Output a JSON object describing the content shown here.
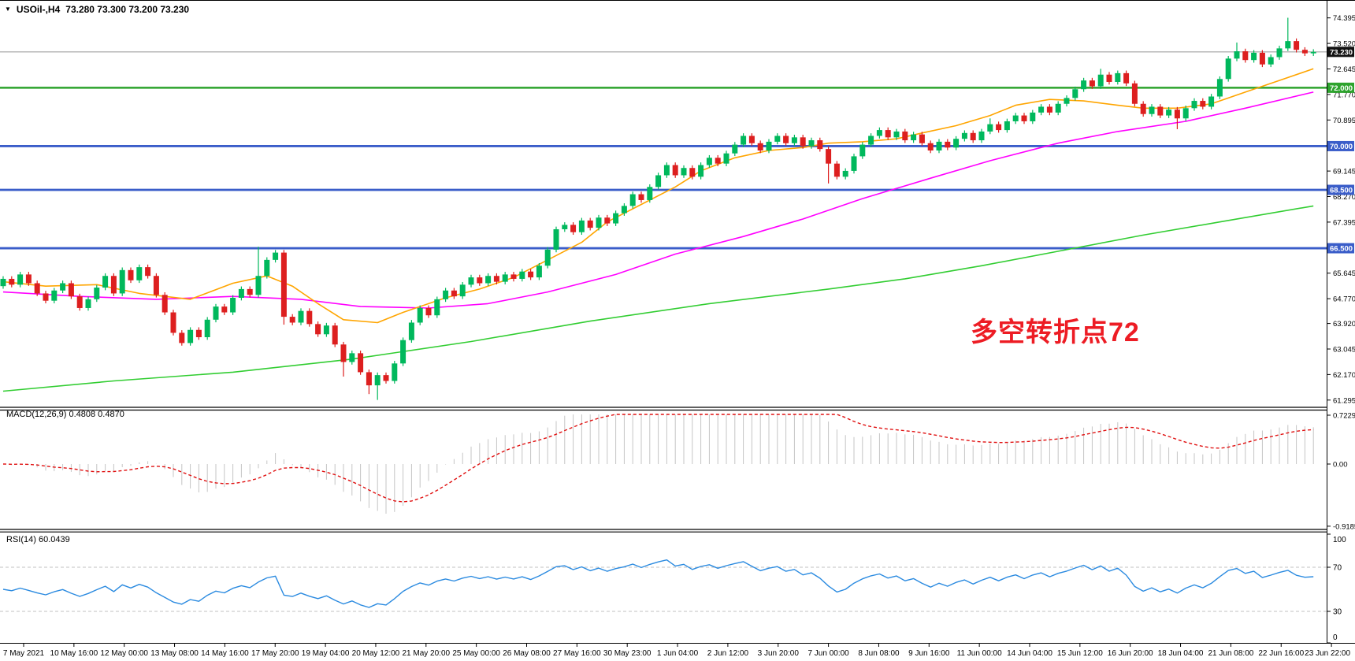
{
  "title": {
    "collapse_icon": "▼",
    "symbol": "USOil-,H4",
    "ohlc": "73.280 73.300 73.200 73.230"
  },
  "indicators": {
    "macd_label": "MACD(12,26,9) 0.4808 0.4870",
    "rsi_label": "RSI(14) 60.0439"
  },
  "annotation": {
    "text": "多空转折点72",
    "color": "#ed1c24"
  },
  "colors": {
    "bull": "#00b85c",
    "bear": "#dd1f1f",
    "level_blue": "#3a5dc9",
    "level_green": "#2da32d",
    "current_price_line": "#999999",
    "macd_histogram": "#c4c4c4",
    "macd_signal": "#e01010",
    "rsi_line": "#2a8ae0",
    "rsi_guides": "#c0c0c0",
    "axis_text": "#000000",
    "current_price_box": "#111111"
  },
  "chart_data": {
    "type": "candlestick_with_macd_rsi",
    "symbol": "USOil",
    "timeframe": "H4",
    "ohlc_current": {
      "open": 73.28,
      "high": 73.3,
      "low": 73.2,
      "close": 73.23
    },
    "ylim": [
      61.295,
      74.395
    ],
    "grid": false,
    "price_ticks": [
      74.395,
      73.52,
      72.645,
      71.77,
      70.895,
      69.145,
      68.27,
      67.395,
      65.645,
      64.77,
      63.92,
      63.045,
      62.17,
      61.295
    ],
    "level_lines": [
      {
        "label": "73.230",
        "price": 73.23,
        "color": "#999999",
        "width": 1,
        "box": true,
        "box_color": "#111111",
        "role": "current-price"
      },
      {
        "label": "72.000",
        "price": 72.0,
        "color": "#2da32d",
        "width": 2.5,
        "box": true,
        "box_color": "#2da32d",
        "role": "pivot-level"
      },
      {
        "label": "70.000",
        "price": 70.0,
        "color": "#3a5dc9",
        "width": 2.8,
        "box": true,
        "box_color": "#3a5dc9",
        "role": "support-level"
      },
      {
        "label": "68.500",
        "price": 68.5,
        "color": "#3a5dc9",
        "width": 2.8,
        "box": true,
        "box_color": "#3a5dc9",
        "role": "support-level"
      },
      {
        "label": "66.500",
        "price": 66.5,
        "color": "#3a5dc9",
        "width": 2.8,
        "box": true,
        "box_color": "#3a5dc9",
        "role": "support-level"
      }
    ],
    "x_tick_labels": [
      "7 May 2021",
      "10 May 16:00",
      "12 May 00:00",
      "13 May 08:00",
      "14 May 16:00",
      "17 May 20:00",
      "19 May 04:00",
      "20 May 12:00",
      "21 May 20:00",
      "25 May 00:00",
      "26 May 08:00",
      "27 May 16:00",
      "30 May 23:00",
      "1 Jun 04:00",
      "2 Jun 12:00",
      "3 Jun 20:00",
      "7 Jun 00:00",
      "8 Jun 08:00",
      "9 Jun 16:00",
      "11 Jun 00:00",
      "14 Jun 04:00",
      "15 Jun 12:00",
      "16 Jun 20:00",
      "18 Jun 04:00",
      "21 Jun 08:00",
      "22 Jun 16:00",
      "23 Jun 22:00"
    ],
    "candles": {
      "first_open": 65.2,
      "default_wick": 0.09,
      "closes": [
        65.45,
        65.25,
        65.6,
        65.3,
        64.95,
        64.7,
        65.05,
        65.3,
        64.85,
        64.45,
        64.75,
        65.15,
        65.55,
        64.95,
        65.75,
        65.4,
        65.85,
        65.55,
        64.9,
        64.3,
        63.6,
        63.25,
        63.7,
        63.45,
        64.05,
        64.5,
        64.3,
        64.8,
        65.1,
        64.9,
        65.55,
        66.1,
        66.35,
        64.15,
        63.95,
        64.35,
        63.9,
        63.55,
        63.85,
        63.2,
        62.6,
        62.9,
        62.25,
        61.8,
        62.15,
        61.95,
        62.55,
        63.35,
        63.95,
        64.45,
        64.2,
        64.75,
        65.05,
        64.85,
        65.25,
        65.5,
        65.3,
        65.55,
        65.35,
        65.6,
        65.45,
        65.7,
        65.5,
        65.9,
        66.45,
        67.15,
        67.3,
        67.05,
        67.45,
        67.2,
        67.55,
        67.35,
        67.7,
        67.95,
        68.35,
        68.15,
        68.6,
        69.0,
        69.35,
        69.0,
        69.25,
        68.95,
        69.35,
        69.6,
        69.4,
        69.75,
        70.05,
        70.35,
        70.1,
        69.85,
        70.15,
        70.35,
        70.1,
        70.3,
        70.0,
        70.2,
        69.9,
        69.4,
        68.95,
        69.15,
        69.65,
        70.05,
        70.35,
        70.55,
        70.3,
        70.5,
        70.2,
        70.4,
        70.1,
        69.85,
        70.15,
        69.95,
        70.25,
        70.45,
        70.2,
        70.5,
        70.75,
        70.55,
        70.85,
        71.05,
        70.85,
        71.15,
        71.35,
        71.15,
        71.45,
        71.65,
        71.95,
        72.25,
        72.05,
        72.45,
        72.2,
        72.5,
        72.15,
        71.45,
        71.1,
        71.35,
        71.05,
        71.25,
        70.95,
        71.3,
        71.55,
        71.35,
        71.7,
        72.3,
        73.0,
        73.25,
        72.95,
        73.2,
        72.8,
        73.05,
        73.35,
        73.6,
        73.3,
        73.18,
        73.23
      ],
      "spikes": [
        {
          "i": 30,
          "high": 66.55
        },
        {
          "i": 33,
          "low": 63.88
        },
        {
          "i": 40,
          "low": 62.1
        },
        {
          "i": 43,
          "low": 61.5
        },
        {
          "i": 44,
          "low": 61.3
        },
        {
          "i": 97,
          "low": 68.72
        },
        {
          "i": 116,
          "high": 70.95
        },
        {
          "i": 129,
          "high": 72.65
        },
        {
          "i": 138,
          "low": 70.58
        },
        {
          "i": 145,
          "high": 73.55
        },
        {
          "i": 151,
          "high": 74.4
        }
      ]
    },
    "moving_averages": [
      {
        "name": "ma-slow-green",
        "color": "#32cd32",
        "points": [
          [
            0,
            61.6
          ],
          [
            13,
            61.95
          ],
          [
            27,
            62.25
          ],
          [
            41,
            62.7
          ],
          [
            55,
            63.3
          ],
          [
            69,
            64.0
          ],
          [
            83,
            64.6
          ],
          [
            97,
            65.1
          ],
          [
            106,
            65.45
          ],
          [
            115,
            65.9
          ],
          [
            125,
            66.45
          ],
          [
            134,
            66.95
          ],
          [
            143,
            67.4
          ],
          [
            154,
            67.95
          ]
        ]
      },
      {
        "name": "ma-mid-magenta",
        "color": "#ff00ff",
        "points": [
          [
            0,
            65.0
          ],
          [
            9,
            64.85
          ],
          [
            18,
            64.75
          ],
          [
            27,
            64.85
          ],
          [
            35,
            64.75
          ],
          [
            42,
            64.5
          ],
          [
            50,
            64.45
          ],
          [
            57,
            64.6
          ],
          [
            64,
            65.0
          ],
          [
            72,
            65.6
          ],
          [
            79,
            66.3
          ],
          [
            87,
            66.9
          ],
          [
            94,
            67.5
          ],
          [
            101,
            68.2
          ],
          [
            109,
            68.9
          ],
          [
            116,
            69.5
          ],
          [
            124,
            70.1
          ],
          [
            131,
            70.5
          ],
          [
            139,
            70.85
          ],
          [
            146,
            71.3
          ],
          [
            154,
            71.85
          ]
        ]
      },
      {
        "name": "ma-fast-orange",
        "color": "#ffa500",
        "points": [
          [
            0,
            65.35
          ],
          [
            5,
            65.2
          ],
          [
            11,
            65.25
          ],
          [
            16,
            64.95
          ],
          [
            22,
            64.75
          ],
          [
            27,
            65.3
          ],
          [
            31,
            65.55
          ],
          [
            34,
            65.2
          ],
          [
            37,
            64.6
          ],
          [
            40,
            64.05
          ],
          [
            44,
            63.95
          ],
          [
            47,
            64.3
          ],
          [
            52,
            64.8
          ],
          [
            56,
            65.1
          ],
          [
            60,
            65.5
          ],
          [
            64,
            66.1
          ],
          [
            68,
            66.7
          ],
          [
            71,
            67.4
          ],
          [
            75,
            68.0
          ],
          [
            79,
            68.6
          ],
          [
            82,
            69.15
          ],
          [
            86,
            69.6
          ],
          [
            90,
            69.85
          ],
          [
            94,
            69.95
          ],
          [
            97,
            70.1
          ],
          [
            101,
            70.15
          ],
          [
            105,
            70.25
          ],
          [
            108,
            70.45
          ],
          [
            112,
            70.7
          ],
          [
            116,
            71.05
          ],
          [
            119,
            71.4
          ],
          [
            123,
            71.6
          ],
          [
            127,
            71.55
          ],
          [
            131,
            71.4
          ],
          [
            134,
            71.3
          ],
          [
            138,
            71.3
          ],
          [
            142,
            71.45
          ],
          [
            146,
            71.85
          ],
          [
            150,
            72.25
          ],
          [
            154,
            72.65
          ]
        ]
      }
    ],
    "macd": {
      "params": [
        12,
        26,
        9
      ],
      "current_values": [
        0.4808,
        0.487
      ],
      "axis_ticks": [
        {
          "label": "0.7229",
          "value": 0.7229
        },
        {
          "label": "0.00",
          "value": 0
        },
        {
          "label": "-0.9185",
          "value": -0.9185
        }
      ]
    },
    "rsi": {
      "period": 14,
      "current_value": 60.0439,
      "guide_levels": [
        70,
        30
      ],
      "axis_ticks": [
        {
          "label": "100",
          "value": 100
        },
        {
          "label": "70",
          "value": 70
        },
        {
          "label": "30",
          "value": 30
        },
        {
          "label": "0",
          "value": 0
        }
      ]
    }
  }
}
